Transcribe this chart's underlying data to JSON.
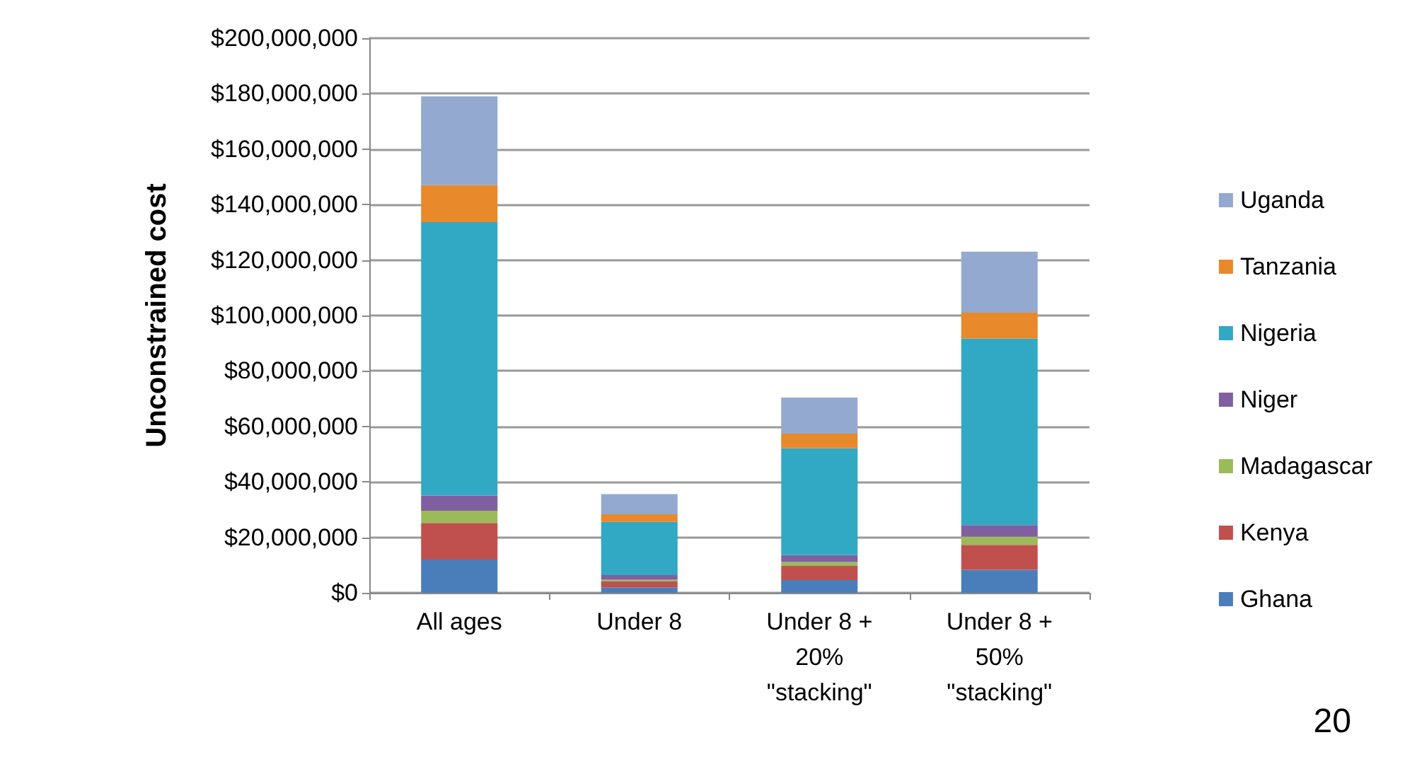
{
  "chart_data": {
    "type": "bar",
    "stacked": true,
    "ylabel": "Unconstrained cost",
    "categories": [
      "All ages",
      "Under 8",
      "Under 8 +\n20%\n\"stacking\"",
      "Under 8 +\n50%\n\"stacking\""
    ],
    "series": [
      {
        "name": "Ghana",
        "color": "#4a7ebb",
        "values": [
          12000000,
          2000000,
          4600000,
          8300000
        ]
      },
      {
        "name": "Kenya",
        "color": "#c0504d",
        "values": [
          13200000,
          2100000,
          5100000,
          9000000
        ]
      },
      {
        "name": "Madagascar",
        "color": "#9bbb59",
        "values": [
          4400000,
          600000,
          1400000,
          2900000
        ]
      },
      {
        "name": "Niger",
        "color": "#7f5fa0",
        "values": [
          5500000,
          1700000,
          2500000,
          4200000
        ]
      },
      {
        "name": "Nigeria",
        "color": "#31a8c4",
        "values": [
          98600000,
          19200000,
          38500000,
          67300000
        ]
      },
      {
        "name": "Tanzania",
        "color": "#e8892b",
        "values": [
          13300000,
          2700000,
          5300000,
          9300000
        ]
      },
      {
        "name": "Uganda",
        "color": "#93a9cf",
        "values": [
          32000000,
          7300000,
          13000000,
          22000000
        ]
      }
    ],
    "ylim": [
      0,
      200000000
    ],
    "yticks": [
      {
        "value": 0,
        "label": "$0"
      },
      {
        "value": 20000000,
        "label": "$20,000,000"
      },
      {
        "value": 40000000,
        "label": "$40,000,000"
      },
      {
        "value": 60000000,
        "label": "$60,000,000"
      },
      {
        "value": 80000000,
        "label": "$80,000,000"
      },
      {
        "value": 100000000,
        "label": "$100,000,000"
      },
      {
        "value": 120000000,
        "label": "$120,000,000"
      },
      {
        "value": 140000000,
        "label": "$140,000,000"
      },
      {
        "value": 160000000,
        "label": "$160,000,000"
      },
      {
        "value": 180000000,
        "label": "$180,000,000"
      },
      {
        "value": 200000000,
        "label": "$200,000,000"
      }
    ],
    "grid": "y",
    "legend": "right",
    "annotations": [
      "20"
    ]
  }
}
